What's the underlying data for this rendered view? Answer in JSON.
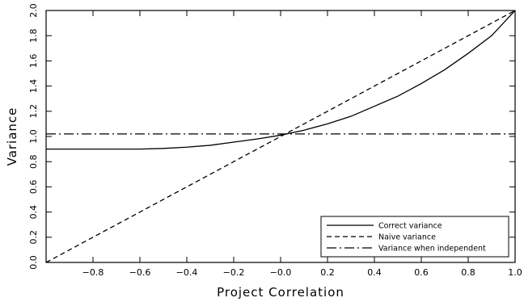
{
  "chart_data": {
    "type": "line",
    "title": "",
    "xlabel": "Project Correlation",
    "ylabel": "Variance",
    "xlim": [
      -1.0,
      1.0
    ],
    "ylim": [
      0.0,
      2.0
    ],
    "x_ticks": [
      -0.8,
      -0.6,
      -0.4,
      -0.2,
      -0.0,
      0.2,
      0.4,
      0.6,
      0.8,
      1.0
    ],
    "x_tick_labels": [
      "−0.8",
      "−0.6",
      "−0.4",
      "−0.2",
      "−0.0",
      "0.2",
      "0.4",
      "0.6",
      "0.8",
      "1.0"
    ],
    "y_ticks": [
      0.0,
      0.2,
      0.4,
      0.6,
      0.8,
      1.0,
      1.2,
      1.4,
      1.6,
      1.8,
      2.0
    ],
    "y_tick_labels": [
      "0.0",
      "0.2",
      "0.4",
      "0.6",
      "0.8",
      "1.0",
      "1.2",
      "1.4",
      "1.6",
      "1.8",
      "2.0"
    ],
    "grid": false,
    "legend_position": "bottom-right",
    "series": [
      {
        "name": "Correct variance",
        "style": "solid",
        "x": [
          -1.0,
          -0.8,
          -0.6,
          -0.5,
          -0.4,
          -0.3,
          -0.2,
          -0.1,
          0.0,
          0.1,
          0.2,
          0.3,
          0.4,
          0.5,
          0.6,
          0.7,
          0.8,
          0.9,
          1.0
        ],
        "y": [
          0.9,
          0.9,
          0.9,
          0.905,
          0.915,
          0.93,
          0.955,
          0.98,
          1.01,
          1.05,
          1.1,
          1.16,
          1.24,
          1.32,
          1.42,
          1.53,
          1.66,
          1.8,
          2.0
        ]
      },
      {
        "name": "Naive variance",
        "style": "dashed",
        "x": [
          -1.0,
          1.0
        ],
        "y": [
          0.0,
          2.0
        ]
      },
      {
        "name": "Variance when independent",
        "style": "dash-dot",
        "x": [
          -1.0,
          1.0
        ],
        "y": [
          1.02,
          1.02
        ]
      }
    ],
    "colors": {
      "line": "#000000",
      "background": "#ffffff"
    }
  }
}
